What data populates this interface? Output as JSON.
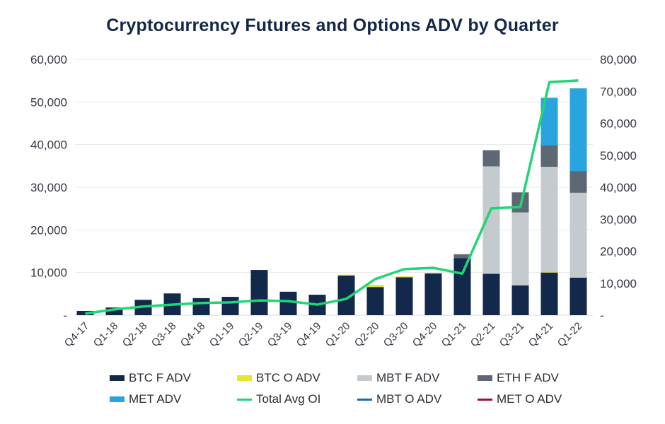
{
  "chart_data": {
    "type": "bar",
    "subtype": "stacked-bar-with-line-secondary-axis",
    "title": "Cryptocurrency Futures and Options ADV by Quarter",
    "xlabel": "",
    "ylabel": "",
    "ylabel_right": "",
    "ylim": [
      0,
      60000
    ],
    "ylim_right": [
      0,
      80000
    ],
    "yticks": [
      "-",
      "10,000",
      "20,000",
      "30,000",
      "40,000",
      "50,000",
      "60,000"
    ],
    "yticks_values": [
      0,
      10000,
      20000,
      30000,
      40000,
      50000,
      60000
    ],
    "yticks_right": [
      "-",
      "10,000",
      "20,000",
      "30,000",
      "40,000",
      "50,000",
      "60,000",
      "70,000",
      "80,000"
    ],
    "yticks_right_values": [
      0,
      10000,
      20000,
      30000,
      40000,
      50000,
      60000,
      70000,
      80000
    ],
    "grid": true,
    "legend_position": "bottom",
    "categories": [
      "Q4-17",
      "Q1-18",
      "Q2-18",
      "Q3-18",
      "Q4-18",
      "Q1-19",
      "Q2-19",
      "Q3-19",
      "Q4-19",
      "Q1-20",
      "Q2-20",
      "Q3-20",
      "Q4-20",
      "Q1-21",
      "Q2-21",
      "Q3-21",
      "Q4-21",
      "Q1-22"
    ],
    "series": [
      {
        "name": "BTC F ADV",
        "type": "bar",
        "axis": "left",
        "color": "#13294b",
        "values": [
          1000,
          1800,
          3600,
          5100,
          4000,
          4300,
          10600,
          5500,
          4800,
          9300,
          6600,
          8900,
          9800,
          13400,
          9700,
          7000,
          10000,
          8800
        ]
      },
      {
        "name": "BTC O ADV",
        "type": "bar",
        "axis": "left",
        "color": "#e3e532",
        "values": [
          0,
          0,
          0,
          0,
          0,
          0,
          0,
          0,
          0,
          200,
          500,
          200,
          100,
          0,
          0,
          0,
          100,
          0
        ]
      },
      {
        "name": "MBT F ADV",
        "type": "bar",
        "axis": "left",
        "color": "#c5cacf",
        "values": [
          0,
          0,
          0,
          0,
          0,
          0,
          0,
          0,
          0,
          0,
          0,
          0,
          0,
          0,
          25200,
          17100,
          24700,
          19900
        ]
      },
      {
        "name": "ETH F ADV",
        "type": "bar",
        "axis": "left",
        "color": "#5d6874",
        "values": [
          0,
          0,
          0,
          0,
          0,
          0,
          0,
          0,
          0,
          0,
          0,
          0,
          0,
          900,
          3800,
          4700,
          5100,
          5100
        ]
      },
      {
        "name": "MET ADV",
        "type": "bar",
        "axis": "left",
        "color": "#2aa4df",
        "values": [
          0,
          0,
          0,
          0,
          0,
          0,
          0,
          0,
          0,
          0,
          0,
          0,
          0,
          0,
          0,
          0,
          11100,
          19400
        ]
      },
      {
        "name": "Total Avg OI",
        "type": "line",
        "axis": "right",
        "color": "#1fd674",
        "values": [
          500,
          1800,
          2700,
          3300,
          3800,
          4000,
          4600,
          4400,
          3300,
          5100,
          11300,
          14400,
          14800,
          13000,
          33400,
          33800,
          72900,
          73400
        ]
      },
      {
        "name": "MBT O ADV",
        "type": "line",
        "axis": "left",
        "color": "#1a6aab",
        "values": [
          0,
          0,
          0,
          0,
          0,
          0,
          0,
          0,
          0,
          0,
          0,
          0,
          0,
          0,
          0,
          0,
          0,
          0
        ]
      },
      {
        "name": "MET O ADV",
        "type": "line",
        "axis": "left",
        "color": "#9b1531",
        "values": [
          0,
          0,
          0,
          0,
          0,
          0,
          0,
          0,
          0,
          0,
          0,
          0,
          0,
          0,
          0,
          0,
          0,
          0
        ]
      }
    ]
  },
  "legend": [
    {
      "label": "BTC F ADV",
      "color": "#13294b",
      "kind": "box"
    },
    {
      "label": "BTC O ADV",
      "color": "#e3e532",
      "kind": "box"
    },
    {
      "label": "MBT F ADV",
      "color": "#c5cacf",
      "kind": "box"
    },
    {
      "label": "ETH F ADV",
      "color": "#5d6874",
      "kind": "box"
    },
    {
      "label": "MET ADV",
      "color": "#2aa4df",
      "kind": "box"
    },
    {
      "label": "Total Avg OI",
      "color": "#1fd674",
      "kind": "line"
    },
    {
      "label": "MBT O ADV",
      "color": "#1a6aab",
      "kind": "line"
    },
    {
      "label": "MET O ADV",
      "color": "#9b1531",
      "kind": "line"
    }
  ]
}
